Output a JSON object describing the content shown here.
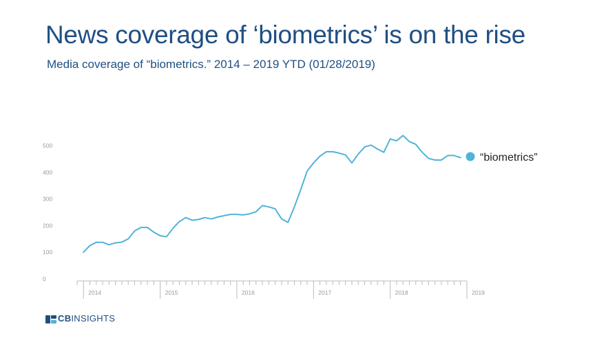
{
  "title": "News coverage of ‘biometrics’ is on the rise",
  "subtitle": "Media coverage of “biometrics.” 2014 – 2019 YTD (01/28/2019)",
  "logo": {
    "brand_bold": "CB",
    "brand_light": "INSIGHTS"
  },
  "colors": {
    "title": "#1f4f82",
    "series": "#4fb3d9",
    "axis": "#bbbbbb",
    "tick": "#999999"
  },
  "chart_data": {
    "type": "line",
    "ylim": [
      0,
      500
    ],
    "yticks": [
      0,
      100,
      200,
      300,
      400,
      500
    ],
    "x_range": [
      2013.917,
      2019.0
    ],
    "xticks": [
      {
        "label": "2014",
        "value": 2014
      },
      {
        "label": "2015",
        "value": 2015
      },
      {
        "label": "2016",
        "value": 2016
      },
      {
        "label": "2017",
        "value": 2017
      },
      {
        "label": "2018",
        "value": 2018
      },
      {
        "label": "2019",
        "value": 2019
      }
    ],
    "grid": false,
    "legend_position": "right",
    "series": [
      {
        "name": "“biometrics”",
        "x": [
          2014.0,
          2014.083,
          2014.167,
          2014.25,
          2014.333,
          2014.417,
          2014.5,
          2014.583,
          2014.667,
          2014.75,
          2014.833,
          2014.917,
          2015.0,
          2015.083,
          2015.167,
          2015.25,
          2015.333,
          2015.417,
          2015.5,
          2015.583,
          2015.667,
          2015.75,
          2015.833,
          2015.917,
          2016.0,
          2016.083,
          2016.167,
          2016.25,
          2016.333,
          2016.417,
          2016.5,
          2016.583,
          2016.667,
          2016.75,
          2016.833,
          2016.917,
          2017.0,
          2017.083,
          2017.167,
          2017.25,
          2017.333,
          2017.417,
          2017.5,
          2017.583,
          2017.667,
          2017.75,
          2017.833,
          2017.917,
          2018.0,
          2018.083,
          2018.167,
          2018.25,
          2018.333,
          2018.417,
          2018.5,
          2018.583,
          2018.667,
          2018.75,
          2018.833,
          2018.917
        ],
        "values": [
          100,
          125,
          137,
          137,
          128,
          135,
          138,
          150,
          180,
          193,
          193,
          175,
          162,
          158,
          190,
          215,
          230,
          220,
          223,
          230,
          225,
          232,
          237,
          242,
          242,
          240,
          244,
          252,
          275,
          270,
          263,
          225,
          212,
          270,
          335,
          405,
          435,
          460,
          477,
          477,
          472,
          465,
          435,
          468,
          495,
          502,
          487,
          475,
          525,
          518,
          538,
          515,
          505,
          475,
          452,
          446,
          446,
          463,
          463,
          455
        ]
      }
    ]
  }
}
